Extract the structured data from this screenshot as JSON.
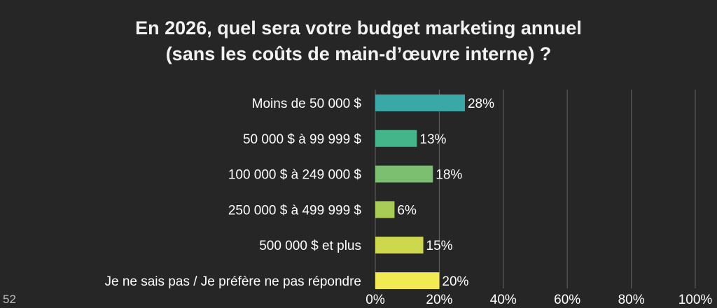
{
  "page_number": "52",
  "chart_data": {
    "type": "bar",
    "orientation": "horizontal",
    "title_lines": [
      "En 2026, quel sera votre budget marketing annuel",
      "(sans les coûts de main-d’œuvre interne) ?"
    ],
    "categories": [
      "Moins de 50 000 $",
      "50 000 $ à 99 999 $",
      "100 000 $ à 249 000 $",
      "250 000 $ à 499 999 $",
      "500 000 $ et plus",
      "Je ne sais pas / Je préfère ne pas répondre"
    ],
    "values": [
      28,
      13,
      18,
      6,
      15,
      20
    ],
    "value_labels": [
      "28%",
      "13%",
      "18%",
      "6%",
      "15%",
      "20%"
    ],
    "xlim": [
      0,
      100
    ],
    "x_ticks": [
      0,
      20,
      40,
      60,
      80,
      100
    ],
    "x_tick_labels": [
      "0%",
      "20%",
      "40%",
      "60%",
      "80%",
      "100%"
    ],
    "grid": true,
    "colors": [
      "#3aa8a6",
      "#44b48a",
      "#7cbf70",
      "#a8cc56",
      "#cdd84c",
      "#f2ea52"
    ],
    "gridline_color": "#5a5a5a",
    "label_color": "#ffffff"
  }
}
